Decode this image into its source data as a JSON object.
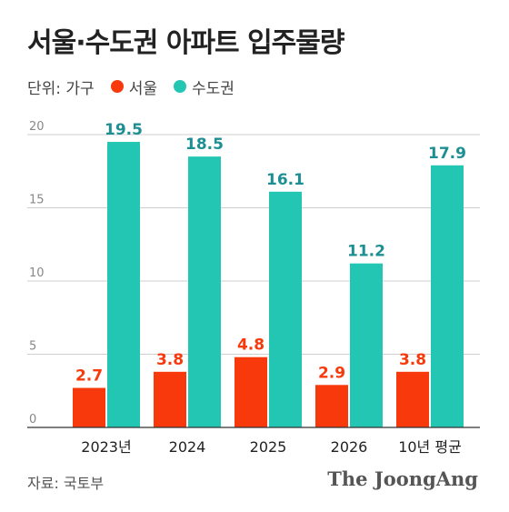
{
  "header": {
    "title": "서울·수도권 아파트 입주물량"
  },
  "legend": {
    "unit": "단위: 가구",
    "items": [
      {
        "label": "서울",
        "color": "#f7390c"
      },
      {
        "label": "수도권",
        "color": "#22c6b3"
      }
    ]
  },
  "colors": {
    "seoul": "#f7390c",
    "capital": "#22c6b3",
    "capital_label": "#1d8f93",
    "grid": "#cfcfcf"
  },
  "chart_data": {
    "type": "bar",
    "categories": [
      "2023년",
      "2024",
      "2025",
      "2026",
      "10년 평균"
    ],
    "series": [
      {
        "name": "서울",
        "values": [
          2.7,
          3.8,
          4.8,
          2.9,
          3.8
        ]
      },
      {
        "name": "수도권",
        "values": [
          19.5,
          18.5,
          16.1,
          11.2,
          17.9
        ]
      }
    ],
    "yticks": [
      0,
      5,
      10,
      15,
      20
    ],
    "ylim": [
      0,
      20
    ],
    "grid": true,
    "legend_position": "top-left"
  },
  "footer": {
    "source": "자료: 국토부",
    "brand": "The JoongAng"
  }
}
